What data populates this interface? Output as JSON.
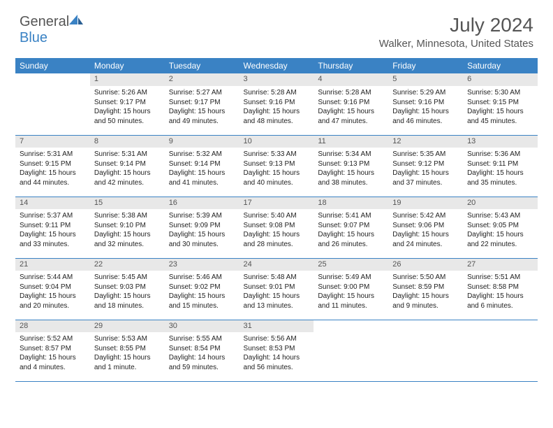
{
  "brand": {
    "part1": "General",
    "part2": "Blue"
  },
  "title": "July 2024",
  "location": "Walker, Minnesota, United States",
  "colors": {
    "accent": "#3a82c4",
    "header_bg": "#3a82c4",
    "daynum_bg": "#e8e8e8",
    "text": "#555555",
    "cell_text": "#222222",
    "background": "#ffffff"
  },
  "dow": [
    "Sunday",
    "Monday",
    "Tuesday",
    "Wednesday",
    "Thursday",
    "Friday",
    "Saturday"
  ],
  "weeks": [
    [
      null,
      {
        "n": "1",
        "sr": "Sunrise: 5:26 AM",
        "ss": "Sunset: 9:17 PM",
        "d1": "Daylight: 15 hours",
        "d2": "and 50 minutes."
      },
      {
        "n": "2",
        "sr": "Sunrise: 5:27 AM",
        "ss": "Sunset: 9:17 PM",
        "d1": "Daylight: 15 hours",
        "d2": "and 49 minutes."
      },
      {
        "n": "3",
        "sr": "Sunrise: 5:28 AM",
        "ss": "Sunset: 9:16 PM",
        "d1": "Daylight: 15 hours",
        "d2": "and 48 minutes."
      },
      {
        "n": "4",
        "sr": "Sunrise: 5:28 AM",
        "ss": "Sunset: 9:16 PM",
        "d1": "Daylight: 15 hours",
        "d2": "and 47 minutes."
      },
      {
        "n": "5",
        "sr": "Sunrise: 5:29 AM",
        "ss": "Sunset: 9:16 PM",
        "d1": "Daylight: 15 hours",
        "d2": "and 46 minutes."
      },
      {
        "n": "6",
        "sr": "Sunrise: 5:30 AM",
        "ss": "Sunset: 9:15 PM",
        "d1": "Daylight: 15 hours",
        "d2": "and 45 minutes."
      }
    ],
    [
      {
        "n": "7",
        "sr": "Sunrise: 5:31 AM",
        "ss": "Sunset: 9:15 PM",
        "d1": "Daylight: 15 hours",
        "d2": "and 44 minutes."
      },
      {
        "n": "8",
        "sr": "Sunrise: 5:31 AM",
        "ss": "Sunset: 9:14 PM",
        "d1": "Daylight: 15 hours",
        "d2": "and 42 minutes."
      },
      {
        "n": "9",
        "sr": "Sunrise: 5:32 AM",
        "ss": "Sunset: 9:14 PM",
        "d1": "Daylight: 15 hours",
        "d2": "and 41 minutes."
      },
      {
        "n": "10",
        "sr": "Sunrise: 5:33 AM",
        "ss": "Sunset: 9:13 PM",
        "d1": "Daylight: 15 hours",
        "d2": "and 40 minutes."
      },
      {
        "n": "11",
        "sr": "Sunrise: 5:34 AM",
        "ss": "Sunset: 9:13 PM",
        "d1": "Daylight: 15 hours",
        "d2": "and 38 minutes."
      },
      {
        "n": "12",
        "sr": "Sunrise: 5:35 AM",
        "ss": "Sunset: 9:12 PM",
        "d1": "Daylight: 15 hours",
        "d2": "and 37 minutes."
      },
      {
        "n": "13",
        "sr": "Sunrise: 5:36 AM",
        "ss": "Sunset: 9:11 PM",
        "d1": "Daylight: 15 hours",
        "d2": "and 35 minutes."
      }
    ],
    [
      {
        "n": "14",
        "sr": "Sunrise: 5:37 AM",
        "ss": "Sunset: 9:11 PM",
        "d1": "Daylight: 15 hours",
        "d2": "and 33 minutes."
      },
      {
        "n": "15",
        "sr": "Sunrise: 5:38 AM",
        "ss": "Sunset: 9:10 PM",
        "d1": "Daylight: 15 hours",
        "d2": "and 32 minutes."
      },
      {
        "n": "16",
        "sr": "Sunrise: 5:39 AM",
        "ss": "Sunset: 9:09 PM",
        "d1": "Daylight: 15 hours",
        "d2": "and 30 minutes."
      },
      {
        "n": "17",
        "sr": "Sunrise: 5:40 AM",
        "ss": "Sunset: 9:08 PM",
        "d1": "Daylight: 15 hours",
        "d2": "and 28 minutes."
      },
      {
        "n": "18",
        "sr": "Sunrise: 5:41 AM",
        "ss": "Sunset: 9:07 PM",
        "d1": "Daylight: 15 hours",
        "d2": "and 26 minutes."
      },
      {
        "n": "19",
        "sr": "Sunrise: 5:42 AM",
        "ss": "Sunset: 9:06 PM",
        "d1": "Daylight: 15 hours",
        "d2": "and 24 minutes."
      },
      {
        "n": "20",
        "sr": "Sunrise: 5:43 AM",
        "ss": "Sunset: 9:05 PM",
        "d1": "Daylight: 15 hours",
        "d2": "and 22 minutes."
      }
    ],
    [
      {
        "n": "21",
        "sr": "Sunrise: 5:44 AM",
        "ss": "Sunset: 9:04 PM",
        "d1": "Daylight: 15 hours",
        "d2": "and 20 minutes."
      },
      {
        "n": "22",
        "sr": "Sunrise: 5:45 AM",
        "ss": "Sunset: 9:03 PM",
        "d1": "Daylight: 15 hours",
        "d2": "and 18 minutes."
      },
      {
        "n": "23",
        "sr": "Sunrise: 5:46 AM",
        "ss": "Sunset: 9:02 PM",
        "d1": "Daylight: 15 hours",
        "d2": "and 15 minutes."
      },
      {
        "n": "24",
        "sr": "Sunrise: 5:48 AM",
        "ss": "Sunset: 9:01 PM",
        "d1": "Daylight: 15 hours",
        "d2": "and 13 minutes."
      },
      {
        "n": "25",
        "sr": "Sunrise: 5:49 AM",
        "ss": "Sunset: 9:00 PM",
        "d1": "Daylight: 15 hours",
        "d2": "and 11 minutes."
      },
      {
        "n": "26",
        "sr": "Sunrise: 5:50 AM",
        "ss": "Sunset: 8:59 PM",
        "d1": "Daylight: 15 hours",
        "d2": "and 9 minutes."
      },
      {
        "n": "27",
        "sr": "Sunrise: 5:51 AM",
        "ss": "Sunset: 8:58 PM",
        "d1": "Daylight: 15 hours",
        "d2": "and 6 minutes."
      }
    ],
    [
      {
        "n": "28",
        "sr": "Sunrise: 5:52 AM",
        "ss": "Sunset: 8:57 PM",
        "d1": "Daylight: 15 hours",
        "d2": "and 4 minutes."
      },
      {
        "n": "29",
        "sr": "Sunrise: 5:53 AM",
        "ss": "Sunset: 8:55 PM",
        "d1": "Daylight: 15 hours",
        "d2": "and 1 minute."
      },
      {
        "n": "30",
        "sr": "Sunrise: 5:55 AM",
        "ss": "Sunset: 8:54 PM",
        "d1": "Daylight: 14 hours",
        "d2": "and 59 minutes."
      },
      {
        "n": "31",
        "sr": "Sunrise: 5:56 AM",
        "ss": "Sunset: 8:53 PM",
        "d1": "Daylight: 14 hours",
        "d2": "and 56 minutes."
      },
      null,
      null,
      null
    ]
  ]
}
